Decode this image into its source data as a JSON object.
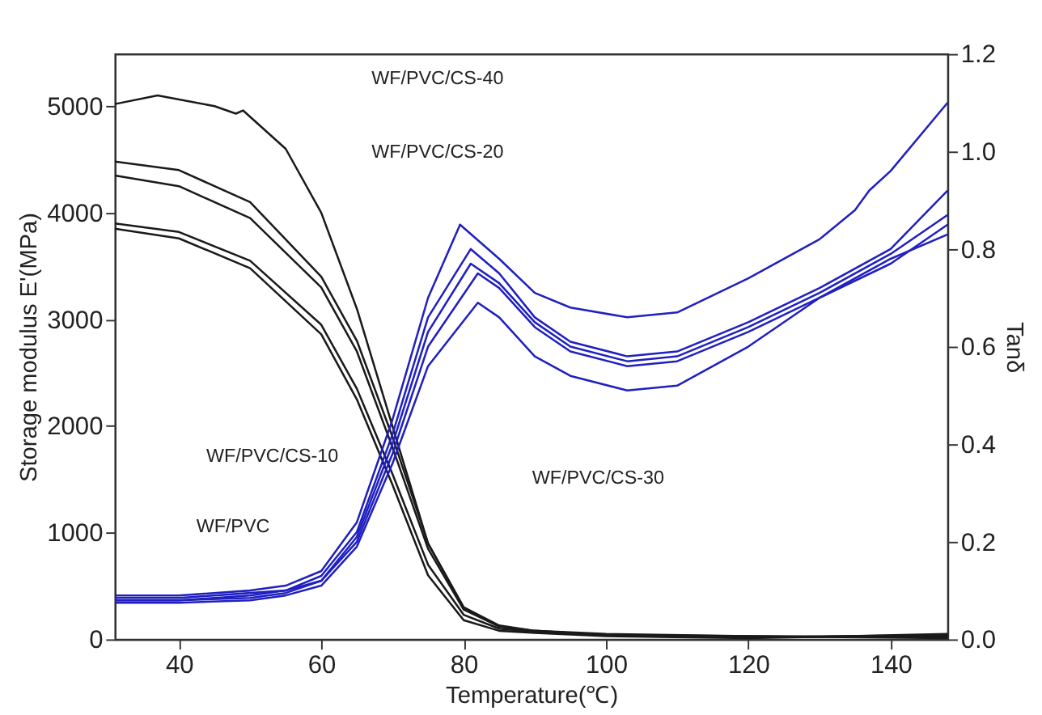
{
  "chart_data": {
    "type": "line",
    "xlabel": "Temperature(℃)",
    "ylabel": "Storage modulus E'(MPa)",
    "y2label": "Tanδ",
    "xlim": [
      31,
      148
    ],
    "xticks": [
      40,
      60,
      80,
      100,
      120,
      140
    ],
    "ylim": [
      0,
      5490
    ],
    "yticks": [
      0,
      1000,
      2000,
      3000,
      4000,
      5000
    ],
    "y2lim": [
      0,
      1.2
    ],
    "y2ticks": [
      {
        "value": 0,
        "label": "0.0"
      },
      {
        "value": 0.2,
        "label": "0.2"
      },
      {
        "value": 0.4,
        "label": "0.4"
      },
      {
        "value": 0.6,
        "label": "0.6"
      },
      {
        "value": 0.8,
        "label": "0.8"
      },
      {
        "value": 1.0,
        "label": "1.0"
      },
      {
        "value": 1.2,
        "label": "1.2"
      }
    ],
    "grid": false,
    "legend": false,
    "marker": "none",
    "line_style": "solid",
    "series": [
      {
        "color": "#1a1a1a",
        "x": [
          31,
          37,
          45,
          48,
          49,
          55,
          60,
          65,
          70,
          75,
          80,
          85,
          90,
          100,
          120,
          148
        ],
        "values": [
          5020,
          5100,
          5000,
          4930,
          4960,
          4600,
          4000,
          3100,
          2000,
          900,
          300,
          120,
          70,
          40,
          30,
          10
        ]
      },
      {
        "color": "#1a1a1a",
        "x": [
          31,
          40,
          50,
          60,
          65,
          70,
          75,
          80,
          85,
          90,
          100,
          120,
          148
        ],
        "values": [
          4480,
          4400,
          4100,
          3400,
          2800,
          1900,
          900,
          300,
          130,
          80,
          50,
          30,
          20
        ]
      },
      {
        "color": "#1a1a1a",
        "x": [
          31,
          40,
          50,
          60,
          65,
          70,
          75,
          80,
          85,
          90,
          100,
          120,
          148
        ],
        "values": [
          4350,
          4250,
          3950,
          3300,
          2700,
          1800,
          850,
          280,
          120,
          80,
          40,
          20,
          30
        ]
      },
      {
        "color": "#1a1a1a",
        "x": [
          31,
          40,
          50,
          60,
          65,
          70,
          75,
          80,
          85,
          90,
          100,
          120,
          148
        ],
        "values": [
          3900,
          3820,
          3550,
          2950,
          2350,
          1550,
          700,
          230,
          100,
          70,
          40,
          20,
          40
        ]
      },
      {
        "color": "#1a1a1a",
        "x": [
          31,
          40,
          50,
          60,
          65,
          70,
          75,
          80,
          85,
          90,
          100,
          120,
          148
        ],
        "values": [
          3850,
          3760,
          3480,
          2860,
          2250,
          1450,
          600,
          180,
          80,
          60,
          30,
          10,
          50
        ]
      },
      {
        "color": "#2020c0",
        "axis": "y2",
        "x": [
          31,
          40,
          50,
          55,
          60,
          65,
          70,
          75,
          79.5,
          85,
          90,
          95,
          103,
          110,
          120,
          130,
          135,
          137,
          140,
          148
        ],
        "values": [
          0.09,
          0.09,
          0.1,
          0.11,
          0.14,
          0.24,
          0.45,
          0.7,
          0.85,
          0.78,
          0.71,
          0.68,
          0.66,
          0.67,
          0.74,
          0.82,
          0.88,
          0.92,
          0.96,
          1.1
        ]
      },
      {
        "color": "#2020c0",
        "axis": "y2",
        "x": [
          31,
          40,
          50,
          55,
          60,
          65,
          70,
          75,
          81,
          85,
          90,
          95,
          103,
          110,
          120,
          130,
          140,
          148
        ],
        "values": [
          0.085,
          0.085,
          0.095,
          0.1,
          0.13,
          0.22,
          0.42,
          0.66,
          0.8,
          0.75,
          0.66,
          0.61,
          0.58,
          0.59,
          0.65,
          0.72,
          0.8,
          0.92
        ]
      },
      {
        "color": "#2020c0",
        "axis": "y2",
        "x": [
          31,
          40,
          50,
          55,
          60,
          65,
          70,
          75,
          81,
          85,
          90,
          95,
          103,
          110,
          120,
          130,
          140,
          148
        ],
        "values": [
          0.08,
          0.08,
          0.09,
          0.1,
          0.12,
          0.21,
          0.4,
          0.63,
          0.77,
          0.73,
          0.65,
          0.6,
          0.57,
          0.58,
          0.64,
          0.71,
          0.79,
          0.87
        ]
      },
      {
        "color": "#2020c0",
        "axis": "y2",
        "x": [
          31,
          40,
          50,
          55,
          60,
          65,
          70,
          75,
          82,
          85,
          90,
          95,
          103,
          110,
          120,
          130,
          140,
          148
        ],
        "values": [
          0.08,
          0.08,
          0.085,
          0.095,
          0.12,
          0.2,
          0.38,
          0.6,
          0.75,
          0.72,
          0.64,
          0.59,
          0.56,
          0.57,
          0.63,
          0.7,
          0.77,
          0.85
        ]
      },
      {
        "color": "#2020c0",
        "axis": "y2",
        "x": [
          31,
          40,
          50,
          55,
          60,
          65,
          70,
          75,
          82,
          85,
          90,
          95,
          103,
          110,
          120,
          130,
          140,
          148
        ],
        "values": [
          0.075,
          0.075,
          0.08,
          0.09,
          0.11,
          0.19,
          0.36,
          0.56,
          0.69,
          0.66,
          0.58,
          0.54,
          0.51,
          0.52,
          0.6,
          0.7,
          0.78,
          0.83
        ]
      }
    ],
    "annotations": [
      "WF/PVC/CS-40",
      "WF/PVC/CS-20",
      "WF/PVC/CS-10",
      "WF/PVC",
      "WF/PVC/CS-30"
    ]
  }
}
